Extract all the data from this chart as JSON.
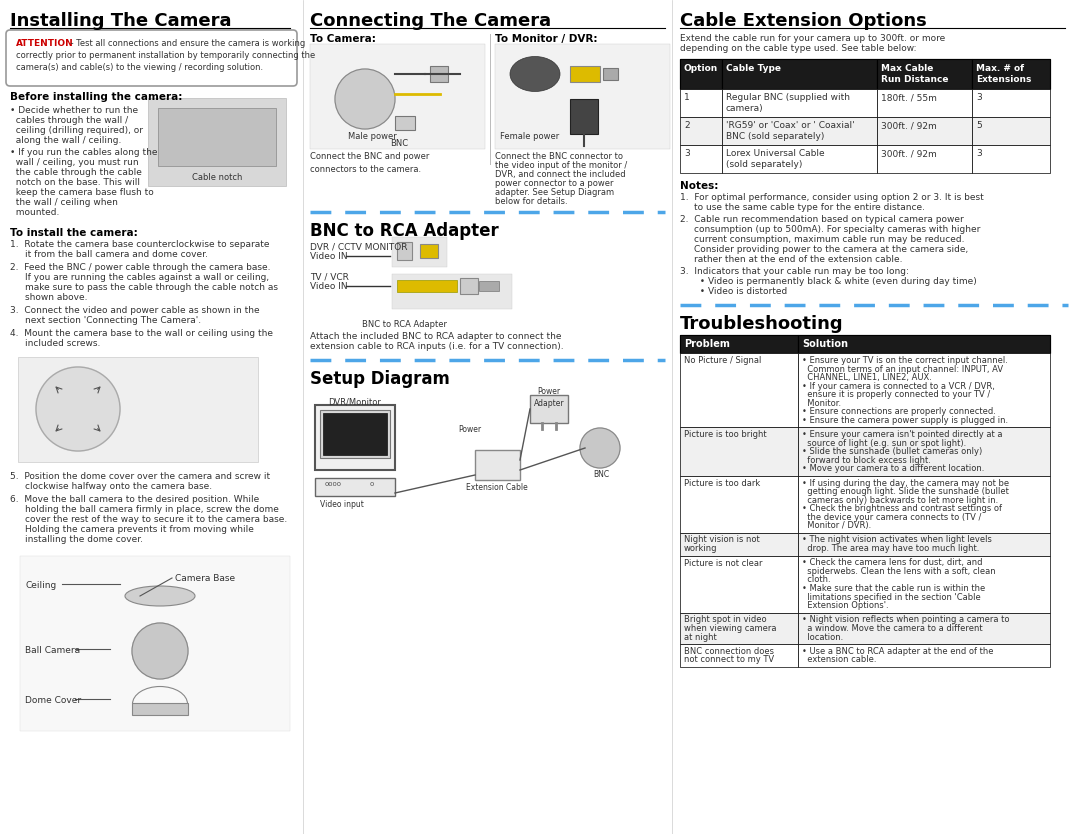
{
  "bg_color": "#ffffff",
  "page_width": 10.8,
  "page_height": 8.34,
  "sections": {
    "installing": {
      "title": "Installing The Camera",
      "before_title": "Before installing the camera:",
      "cable_notch_label": "Cable notch",
      "install_title": "To install the camera:",
      "install_steps": [
        "Rotate the camera base counterclockwise to separate\nit from the ball camera and dome cover.",
        "Feed the BNC / power cable through the camera base.\nIf you are running the cables against a wall or ceiling,\nmake sure to pass the cable through the cable notch as\nshown above.",
        "Connect the video and power cable as shown in the\nnext section 'Connecting The Camera'.",
        "Mount the camera base to the wall or ceiling using the\nincluded screws."
      ],
      "steps_56": [
        "Position the dome cover over the camera and screw it\nclockwise halfway onto the camera base.",
        "Move the ball camera to the desired position. While\nholding the ball camera firmly in place, screw the dome\ncover the rest of the way to secure it to the camera base.\nHolding the camera prevents it from moving while\ninstalling the dome cover."
      ],
      "labels": [
        "Ceiling",
        "Camera Base",
        "Ball Camera",
        "Dome Cover"
      ]
    },
    "connecting": {
      "title": "Connecting The Camera",
      "to_camera": "To Camera:",
      "to_monitor": "To Monitor / DVR:",
      "male_power": "Male power",
      "female_power": "Female power",
      "bnc_label": "BNC",
      "connect_text": "Connect the BNC and power\nconnectors to the camera.",
      "connect_text2": "Connect the BNC connector to\nthe video input of the monitor /\nDVR, and connect the included\npower connector to a power\nadapter. See Setup Diagram\nbelow for details."
    },
    "bnc_adapter": {
      "title": "BNC to RCA Adapter",
      "dvr_label": "DVR / CCTV MONITOR",
      "dvr_video": "Video IN",
      "tv_label": "TV / VCR",
      "tv_video": "Video IN",
      "bnc_rca_label": "BNC to RCA Adapter",
      "attach_text": "Attach the included BNC to RCA adapter to connect the\nextension cable to RCA inputs (i.e. for a TV connection)."
    },
    "setup": {
      "title": "Setup Diagram",
      "labels": [
        "DVR/Monitor",
        "Power\nAdapter",
        "Power",
        "Extension Cable",
        "BNC",
        "Video input"
      ]
    },
    "cable": {
      "title": "Cable Extension Options",
      "intro": "Extend the cable run for your camera up to 300ft. or more\ndepending on the cable type used. See table below:",
      "table_headers": [
        "Option",
        "Cable Type",
        "Max Cable\nRun Distance",
        "Max. # of\nExtensions"
      ],
      "table_rows": [
        [
          "1",
          "Regular BNC (supplied with\ncamera)",
          "180ft. / 55m",
          "3"
        ],
        [
          "2",
          "'RG59' or 'Coax' or ' Coaxial'\nBNC (sold separately)",
          "300ft. / 92m",
          "5"
        ],
        [
          "3",
          "Lorex Universal Cable\n(sold separately)",
          "300ft. / 92m",
          "3"
        ]
      ],
      "notes_title": "Notes:",
      "notes": [
        "For optimal performance, consider using option 2 or 3. It is best\nto use the same cable type for the entire distance.",
        "Cable run recommendation based on typical camera power\nconsumption (up to 500mA). For specialty cameras with higher\ncurrent consumption, maximum cable run may be reduced.\nConsider providing power to the camera at the camera side,\nrather then at the end of the extension cable.",
        "Indicators that your cable run may be too long:\n  • Video is permanently black & white (even during day time)\n  • Video is distorted"
      ]
    },
    "troubleshooting": {
      "title": "Troubleshooting",
      "table_headers": [
        "Problem",
        "Solution"
      ],
      "table_rows": [
        [
          "No Picture / Signal",
          "• Ensure your TV is on the correct input channel.\n  Common terms of an input channel: INPUT, AV\n  CHANNEL, LINE1, LINE2, AUX.\n• If your camera is connected to a VCR / DVR,\n  ensure it is properly connected to your TV /\n  Monitor.\n• Ensure connections are properly connected.\n• Ensure the camera power supply is plugged in."
        ],
        [
          "Picture is too bright",
          "• Ensure your camera isn't pointed directly at a\n  source of light (e.g. sun or spot light).\n• Slide the sunshade (bullet cameras only)\n  forward to block excess light.\n• Move your camera to a different location."
        ],
        [
          "Picture is too dark",
          "• If using during the day, the camera may not be\n  getting enough light. Slide the sunshade (bullet\n  cameras only) backwards to let more light in.\n• Check the brightness and contrast settings of\n  the device your camera connects to (TV /\n  Monitor / DVR)."
        ],
        [
          "Night vision is not\nworking",
          "• The night vision activates when light levels\n  drop. The area may have too much light."
        ],
        [
          "Picture is not clear",
          "• Check the camera lens for dust, dirt, and\n  spiderwebs. Clean the lens with a soft, clean\n  cloth.\n• Make sure that the cable run is within the\n  limitations specified in the section 'Cable\n  Extension Options'."
        ],
        [
          "Bright spot in video\nwhen viewing camera\nat night",
          "• Night vision reflects when pointing a camera to\n  a window. Move the camera to a different\n  location."
        ],
        [
          "BNC connection does\nnot connect to my TV",
          "• Use a BNC to RCA adapter at the end of the\n  extension cable."
        ]
      ]
    }
  },
  "colors": {
    "title_color": "#000000",
    "text_color": "#333333",
    "attention_red": "#cc0000",
    "attention_border": "#888888",
    "table_header_bg": "#1a1a1a",
    "table_header_fg": "#ffffff",
    "table_row_bg1": "#ffffff",
    "table_row_bg2": "#f0f0f0",
    "dashed_line_color": "#4da6e8"
  }
}
